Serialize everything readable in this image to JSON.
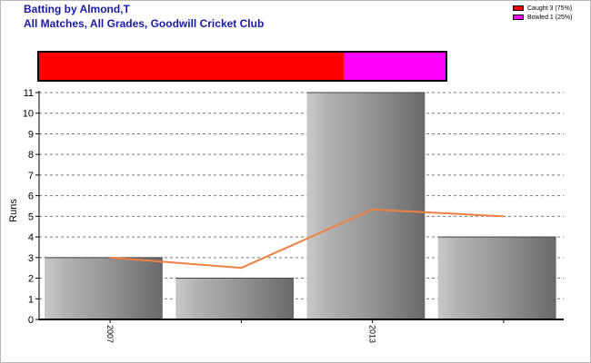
{
  "header": {
    "title_line1": "Batting by Almond,T",
    "title_line2": "All Matches, All Grades, Goodwill Cricket Club"
  },
  "legend": [
    {
      "label": "Caught 3 (75%)",
      "color": "#ff0000"
    },
    {
      "label": "Bowled 1 (25%)",
      "color": "#ff00ff"
    }
  ],
  "chart_data": [
    {
      "type": "bar",
      "title": "Batting by Almond,T",
      "subtitle": "All Matches, All Grades, Goodwill Cricket Club",
      "ylabel": "Runs",
      "ylim": [
        0,
        11
      ],
      "yticks": [
        0,
        1,
        2,
        3,
        4,
        5,
        6,
        7,
        8,
        9,
        10,
        11
      ],
      "grid": true,
      "x_tick_labels": [
        {
          "label": "2007",
          "index": 0
        },
        {
          "label": "2013",
          "index": 2
        }
      ],
      "bars": [
        3,
        2,
        11,
        4
      ],
      "trend_line": [
        3,
        2.5,
        5.33,
        5
      ],
      "bar_color": "#999999",
      "trend_color": "#f08040"
    },
    {
      "type": "bar",
      "orientation": "horizontal-stacked",
      "segments": [
        {
          "label": "Caught",
          "value": 3,
          "percent": 75,
          "color": "#ff0000"
        },
        {
          "label": "Bowled",
          "value": 1,
          "percent": 25,
          "color": "#ff00ff"
        }
      ]
    }
  ]
}
